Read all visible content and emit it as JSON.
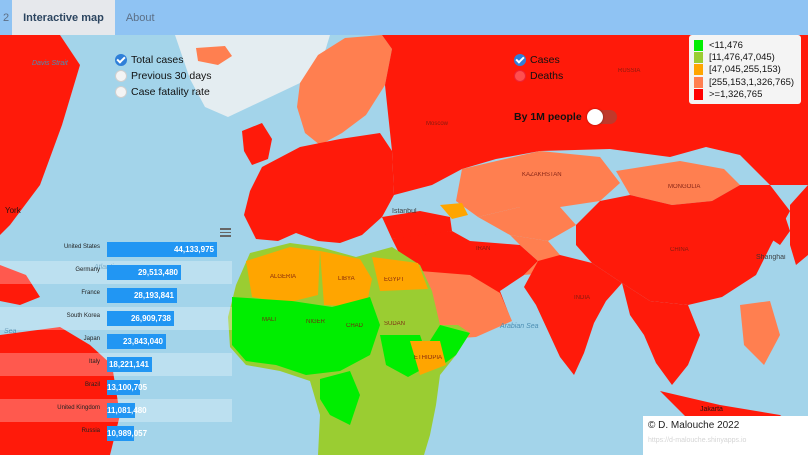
{
  "nav": {
    "cut_tab": "2",
    "tabs": [
      {
        "label": "Interactive map",
        "active": true
      },
      {
        "label": "About",
        "active": false
      }
    ]
  },
  "metric_options": [
    {
      "label": "Total cases",
      "selected": true
    },
    {
      "label": "Previous 30 days",
      "selected": false
    },
    {
      "label": "Case fatality rate",
      "selected": false
    }
  ],
  "layer_options": [
    {
      "label": "Cases",
      "selected": true
    },
    {
      "label": "Deaths",
      "selected": false
    }
  ],
  "toggle": {
    "label": "By 1M people",
    "on": false
  },
  "legend": [
    {
      "label": "<11,476",
      "color": "#00ee00"
    },
    {
      "label": "[11,476,47,045)",
      "color": "#9acd32"
    },
    {
      "label": "[47,045,255,153)",
      "color": "#ffa500"
    },
    {
      "label": "[255,153,1,326,765)",
      "color": "#ff7f50"
    },
    {
      "label": ">=1,326,765",
      "color": "#ff0000"
    }
  ],
  "map_labels": {
    "davis_strait": "Davis Strait",
    "york": "York",
    "moscow": "Moscow",
    "kazakhstan": "KAZAKHSTAN",
    "mongolia": "MONGOLIA",
    "istanbul": "Istanbul",
    "algeria": "ALGERIA",
    "libya": "LIBYA",
    "egypt": "EGYPT",
    "mali": "MALI",
    "niger": "NIGER",
    "chad": "CHAD",
    "sudan": "SUDAN",
    "ethiopia": "ETHIOPIA",
    "arabian_sea": "Arabian Sea",
    "atlantic": "Atlantic",
    "sea": "Sea",
    "iran": "IRAN",
    "india": "INDIA",
    "china": "CHINA",
    "shanghai": "Shanghai",
    "jakarta": "Jakarta",
    "russia": "RUSSIA"
  },
  "chart_data": {
    "type": "bar",
    "categories": [
      "United States",
      "Germany",
      "France",
      "South Korea",
      "Japan",
      "Italy",
      "Brazil",
      "United Kingdom",
      "Russia"
    ],
    "values": [
      44133975,
      29513480,
      28193841,
      26909738,
      23843040,
      18221141,
      13100705,
      11081480,
      10989057
    ],
    "labels": [
      "44,133,975",
      "29,513,480",
      "28,193,841",
      "26,909,738",
      "23,843,040",
      "18,221,141",
      "13,100,705",
      "11,081,480",
      "10,989,057"
    ],
    "title": "",
    "xlabel": "",
    "ylabel": ""
  },
  "credit": {
    "text": "© D. Malouche 2022",
    "faint": "https://d-malouche.shinyapps.io"
  }
}
